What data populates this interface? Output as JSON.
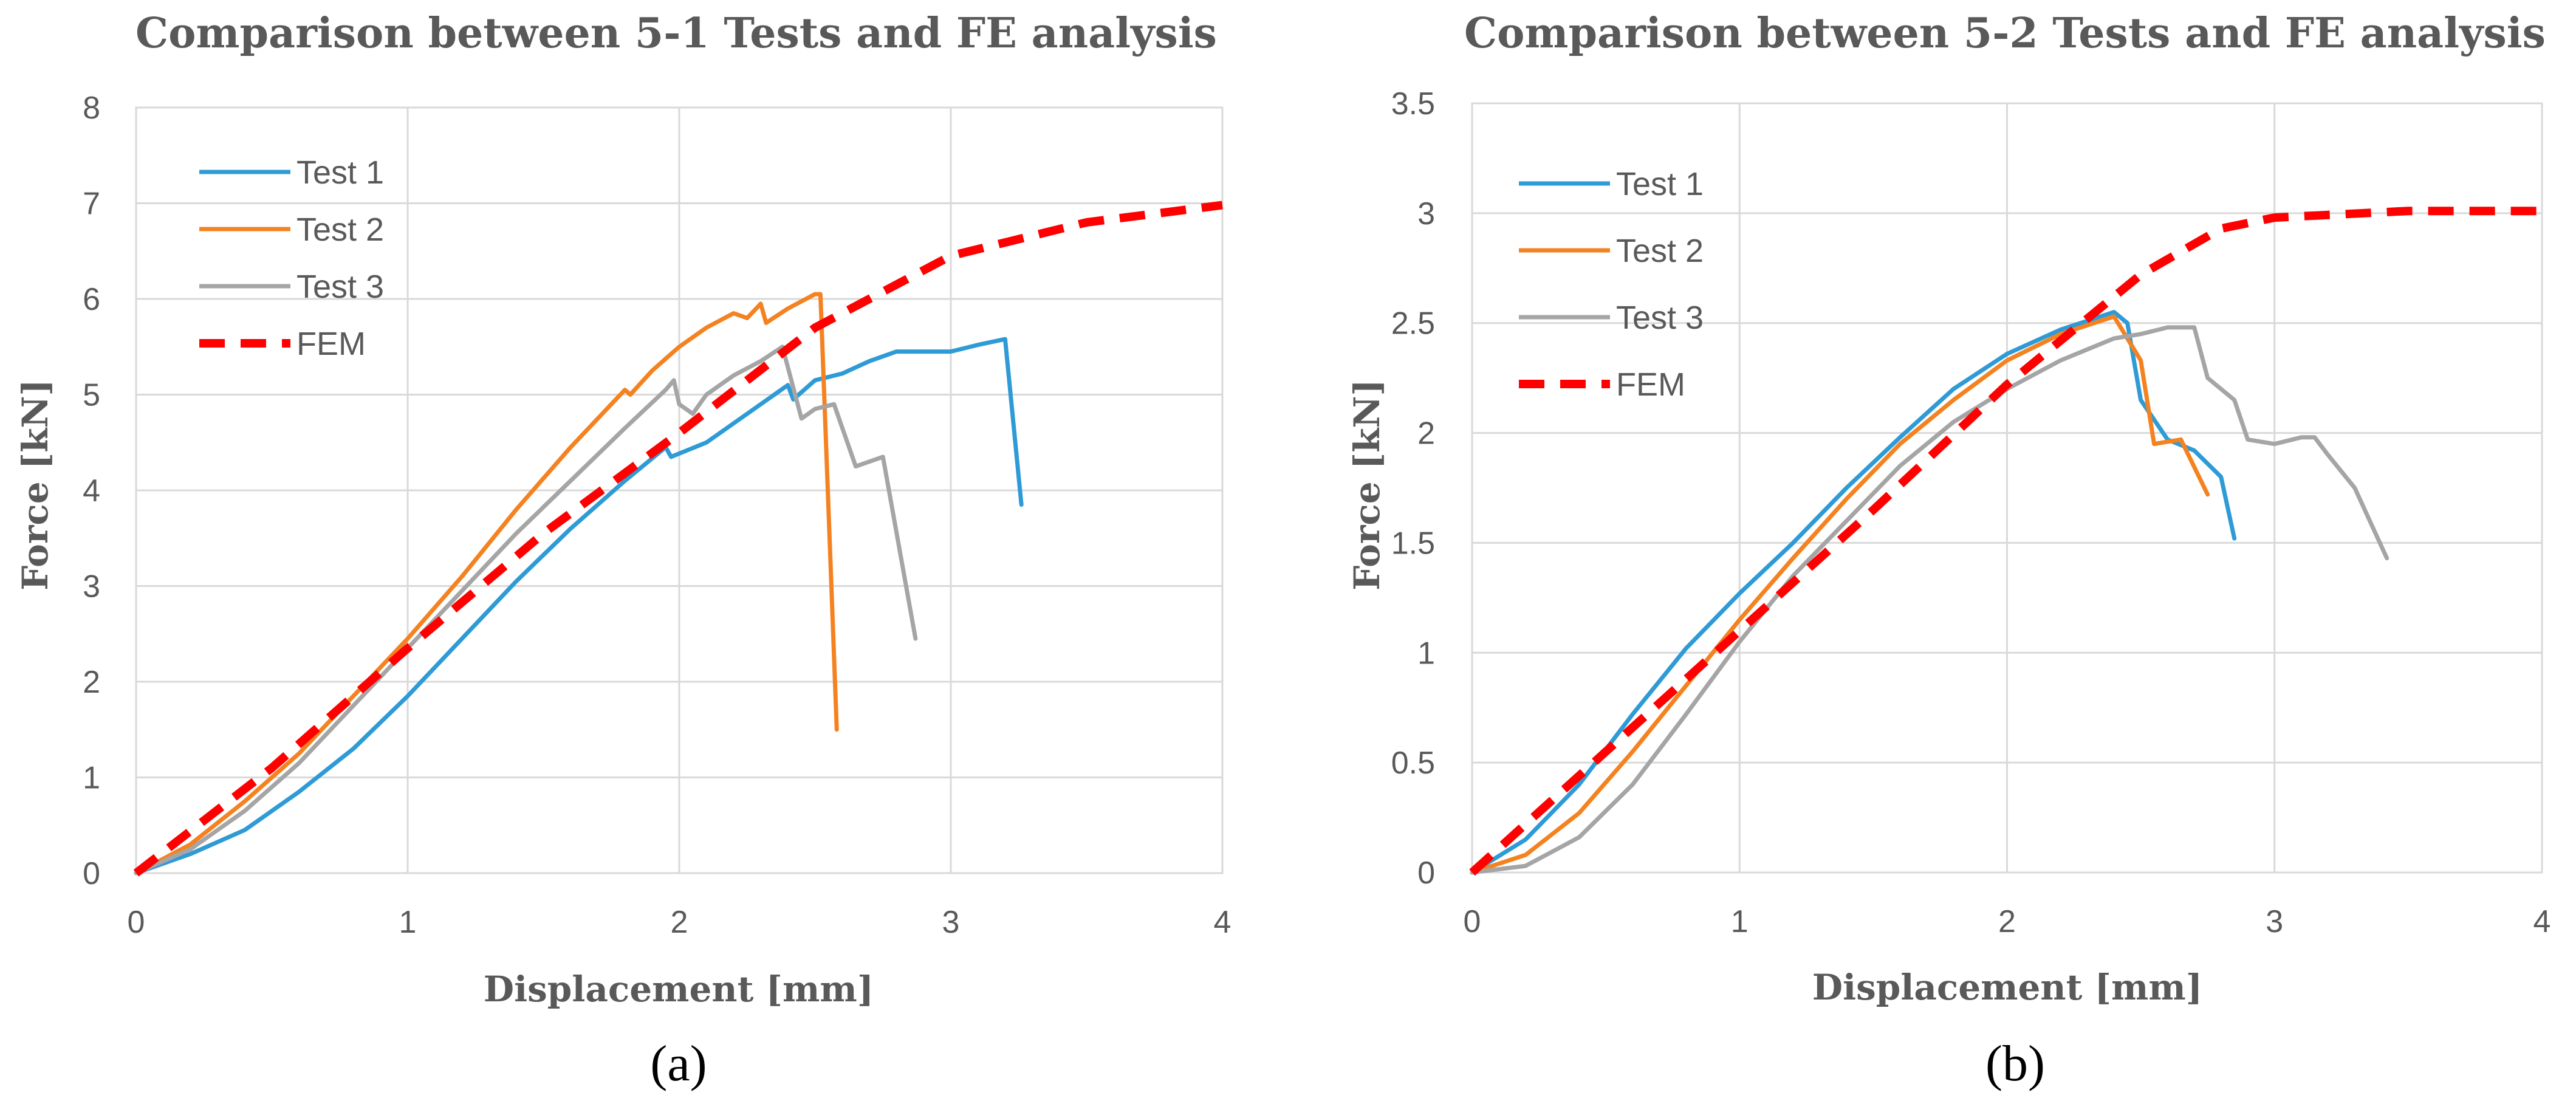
{
  "colors": {
    "test1": "#2e9bd6",
    "test2": "#f58220",
    "test3": "#a5a5a5",
    "fem": "#ff0000",
    "grid": "#d9d9d9",
    "text": "#595959"
  },
  "chart_data": [
    {
      "type": "line",
      "title": "Comparison between 5-1 Tests and FE analysis",
      "xlabel": "Displacement [mm]",
      "ylabel": "Force [kN]",
      "caption": "(a)",
      "xlim": [
        0,
        4
      ],
      "ylim": [
        0,
        8
      ],
      "xticks": [
        "0",
        "1",
        "2",
        "3",
        "4"
      ],
      "yticks": [
        "0",
        "1",
        "2",
        "3",
        "4",
        "5",
        "6",
        "7",
        "8"
      ],
      "series": [
        {
          "name": "Test 1",
          "style": "solid",
          "color": "#2e9bd6",
          "points": [
            [
              0,
              0
            ],
            [
              0.2,
              0.2
            ],
            [
              0.4,
              0.45
            ],
            [
              0.6,
              0.85
            ],
            [
              0.8,
              1.3
            ],
            [
              1.0,
              1.85
            ],
            [
              1.2,
              2.45
            ],
            [
              1.4,
              3.05
            ],
            [
              1.6,
              3.6
            ],
            [
              1.8,
              4.1
            ],
            [
              1.95,
              4.45
            ],
            [
              1.97,
              4.35
            ],
            [
              2.1,
              4.5
            ],
            [
              2.2,
              4.7
            ],
            [
              2.3,
              4.9
            ],
            [
              2.4,
              5.1
            ],
            [
              2.42,
              4.95
            ],
            [
              2.5,
              5.15
            ],
            [
              2.6,
              5.22
            ],
            [
              2.7,
              5.35
            ],
            [
              2.8,
              5.45
            ],
            [
              2.9,
              5.45
            ],
            [
              3.0,
              5.45
            ],
            [
              3.1,
              5.52
            ],
            [
              3.2,
              5.58
            ],
            [
              3.26,
              3.85
            ]
          ]
        },
        {
          "name": "Test 2",
          "style": "solid",
          "color": "#f58220",
          "points": [
            [
              0,
              0
            ],
            [
              0.2,
              0.3
            ],
            [
              0.4,
              0.75
            ],
            [
              0.6,
              1.25
            ],
            [
              0.8,
              1.85
            ],
            [
              1.0,
              2.45
            ],
            [
              1.2,
              3.1
            ],
            [
              1.4,
              3.8
            ],
            [
              1.6,
              4.45
            ],
            [
              1.8,
              5.05
            ],
            [
              1.82,
              5.0
            ],
            [
              1.9,
              5.25
            ],
            [
              2.0,
              5.5
            ],
            [
              2.1,
              5.7
            ],
            [
              2.2,
              5.85
            ],
            [
              2.25,
              5.8
            ],
            [
              2.3,
              5.95
            ],
            [
              2.32,
              5.75
            ],
            [
              2.4,
              5.9
            ],
            [
              2.5,
              6.05
            ],
            [
              2.52,
              6.05
            ],
            [
              2.58,
              1.5
            ]
          ]
        },
        {
          "name": "Test 3",
          "style": "solid",
          "color": "#a5a5a5",
          "points": [
            [
              0,
              0
            ],
            [
              0.2,
              0.25
            ],
            [
              0.4,
              0.65
            ],
            [
              0.6,
              1.15
            ],
            [
              0.8,
              1.75
            ],
            [
              1.0,
              2.35
            ],
            [
              1.2,
              2.95
            ],
            [
              1.4,
              3.55
            ],
            [
              1.6,
              4.1
            ],
            [
              1.8,
              4.65
            ],
            [
              1.95,
              5.05
            ],
            [
              1.98,
              5.15
            ],
            [
              2.0,
              4.9
            ],
            [
              2.05,
              4.8
            ],
            [
              2.1,
              5.0
            ],
            [
              2.2,
              5.2
            ],
            [
              2.3,
              5.35
            ],
            [
              2.38,
              5.5
            ],
            [
              2.45,
              4.75
            ],
            [
              2.5,
              4.85
            ],
            [
              2.57,
              4.9
            ],
            [
              2.65,
              4.25
            ],
            [
              2.75,
              4.35
            ],
            [
              2.87,
              2.45
            ]
          ]
        },
        {
          "name": "FEM",
          "style": "dashed",
          "color": "#ff0000",
          "points": [
            [
              0,
              0
            ],
            [
              0.5,
              1.1
            ],
            [
              1.0,
              2.35
            ],
            [
              1.5,
              3.55
            ],
            [
              2.0,
              4.6
            ],
            [
              2.5,
              5.7
            ],
            [
              3.0,
              6.45
            ],
            [
              3.5,
              6.8
            ],
            [
              4.0,
              6.98
            ]
          ]
        }
      ]
    },
    {
      "type": "line",
      "title": "Comparison between 5-2 Tests and FE analysis",
      "xlabel": "Displacement [mm]",
      "ylabel": "Force [kN]",
      "caption": "(b)",
      "xlim": [
        0,
        4
      ],
      "ylim": [
        0,
        3.5
      ],
      "xticks": [
        "0",
        "1",
        "2",
        "3",
        "4"
      ],
      "yticks": [
        "0",
        "0.5",
        "1",
        "1.5",
        "2",
        "2.5",
        "3",
        "3.5"
      ],
      "series": [
        {
          "name": "Test 1",
          "style": "solid",
          "color": "#2e9bd6",
          "points": [
            [
              0,
              0
            ],
            [
              0.2,
              0.15
            ],
            [
              0.4,
              0.4
            ],
            [
              0.6,
              0.72
            ],
            [
              0.8,
              1.02
            ],
            [
              1.0,
              1.27
            ],
            [
              1.2,
              1.5
            ],
            [
              1.4,
              1.75
            ],
            [
              1.6,
              1.98
            ],
            [
              1.8,
              2.2
            ],
            [
              2.0,
              2.36
            ],
            [
              2.2,
              2.47
            ],
            [
              2.4,
              2.55
            ],
            [
              2.45,
              2.5
            ],
            [
              2.5,
              2.15
            ],
            [
              2.6,
              1.97
            ],
            [
              2.7,
              1.92
            ],
            [
              2.8,
              1.8
            ],
            [
              2.85,
              1.52
            ]
          ]
        },
        {
          "name": "Test 2",
          "style": "solid",
          "color": "#f58220",
          "points": [
            [
              0,
              0
            ],
            [
              0.2,
              0.08
            ],
            [
              0.4,
              0.27
            ],
            [
              0.6,
              0.55
            ],
            [
              0.8,
              0.85
            ],
            [
              1.0,
              1.15
            ],
            [
              1.2,
              1.43
            ],
            [
              1.4,
              1.7
            ],
            [
              1.6,
              1.95
            ],
            [
              1.8,
              2.15
            ],
            [
              2.0,
              2.33
            ],
            [
              2.2,
              2.45
            ],
            [
              2.4,
              2.53
            ],
            [
              2.5,
              2.33
            ],
            [
              2.55,
              1.95
            ],
            [
              2.65,
              1.97
            ],
            [
              2.75,
              1.72
            ]
          ]
        },
        {
          "name": "Test 3",
          "style": "solid",
          "color": "#a5a5a5",
          "points": [
            [
              0,
              0
            ],
            [
              0.2,
              0.03
            ],
            [
              0.4,
              0.16
            ],
            [
              0.6,
              0.4
            ],
            [
              0.8,
              0.72
            ],
            [
              1.0,
              1.05
            ],
            [
              1.2,
              1.35
            ],
            [
              1.4,
              1.6
            ],
            [
              1.6,
              1.85
            ],
            [
              1.8,
              2.05
            ],
            [
              2.0,
              2.2
            ],
            [
              2.2,
              2.33
            ],
            [
              2.4,
              2.43
            ],
            [
              2.5,
              2.45
            ],
            [
              2.6,
              2.48
            ],
            [
              2.7,
              2.48
            ],
            [
              2.75,
              2.25
            ],
            [
              2.85,
              2.15
            ],
            [
              2.9,
              1.97
            ],
            [
              3.0,
              1.95
            ],
            [
              3.1,
              1.98
            ],
            [
              3.15,
              1.98
            ],
            [
              3.2,
              1.9
            ],
            [
              3.3,
              1.75
            ],
            [
              3.42,
              1.43
            ]
          ]
        },
        {
          "name": "FEM",
          "style": "dashed",
          "color": "#ff0000",
          "points": [
            [
              0,
              0
            ],
            [
              0.5,
              0.55
            ],
            [
              1.0,
              1.1
            ],
            [
              1.5,
              1.65
            ],
            [
              2.0,
              2.22
            ],
            [
              2.5,
              2.72
            ],
            [
              2.8,
              2.93
            ],
            [
              3.0,
              2.98
            ],
            [
              3.5,
              3.01
            ],
            [
              4.0,
              3.01
            ]
          ]
        }
      ]
    }
  ]
}
